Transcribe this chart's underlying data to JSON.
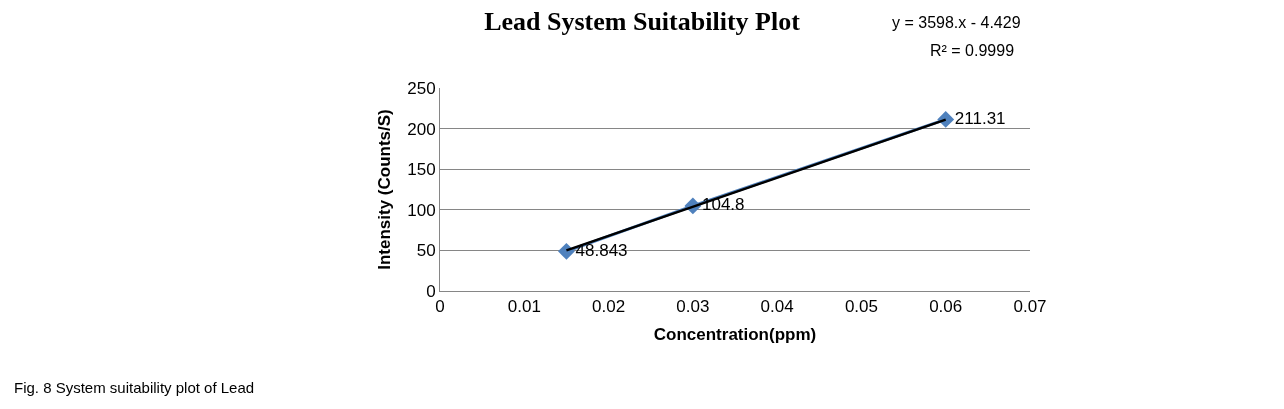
{
  "chart_data": {
    "type": "line",
    "title": "Lead System Suitability Plot",
    "xlabel": "Concentration(ppm)",
    "ylabel": "Intensity (Counts/S)",
    "x": [
      0.015,
      0.03,
      0.06
    ],
    "series": [
      {
        "color": "#4f81bd",
        "values": [
          48.843,
          104.8,
          211.31
        ],
        "marker": "diamond",
        "value_labels": [
          "48.843",
          "104.8",
          "211.31"
        ]
      },
      {
        "type": "line",
        "color": "#000000",
        "x": [
          0.015,
          0.06
        ],
        "values": [
          50,
          211
        ],
        "marker": "none"
      }
    ],
    "xlim": [
      0,
      0.07
    ],
    "xticks": [
      0,
      0.01,
      0.02,
      0.03,
      0.04,
      0.05,
      0.06,
      0.07
    ],
    "ylim": [
      0,
      250
    ],
    "yticks": [
      0,
      50,
      100,
      150,
      200,
      250
    ],
    "grid": "y",
    "annotations": [
      "y = 3598.x - 4.429",
      "R² = 0.9999",
      "Fig. 8 System suitability plot of Lead"
    ]
  }
}
